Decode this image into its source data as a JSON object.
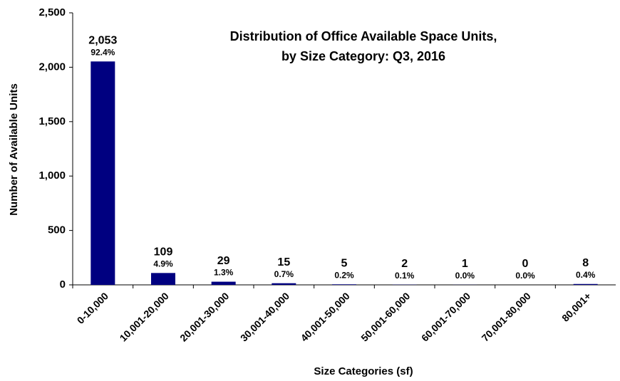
{
  "chart_data": {
    "type": "bar",
    "title": [
      "Distribution of Office Available Space Units,",
      "by Size Category: Q3, 2016"
    ],
    "x_label": "Size Categories (sf)",
    "y_label": "Number of Available Units",
    "categories": [
      "0-10,000",
      "10,001-20,000",
      "20,001-30,000",
      "30,001-40,000",
      "40,001-50,000",
      "50,001-60,000",
      "60,001-70,000",
      "70,001-80,000",
      "80,001+"
    ],
    "values": [
      2053,
      109,
      29,
      15,
      5,
      2,
      1,
      0,
      8
    ],
    "value_labels": [
      "2,053",
      "109",
      "29",
      "15",
      "5",
      "2",
      "1",
      "0",
      "8"
    ],
    "percentages": [
      {
        "value": 92.4,
        "label": "92.4%"
      },
      {
        "value": 4.9,
        "label": "4.9%"
      },
      {
        "value": 1.3,
        "label": "1.3%"
      },
      {
        "value": 0.7,
        "label": "0.7%"
      },
      {
        "value": 0.2,
        "label": "0.2%"
      },
      {
        "value": 0.1,
        "label": "0.1%"
      },
      {
        "value": 0.0,
        "label": "0.0%"
      },
      {
        "value": 0.0,
        "label": "0.0%"
      },
      {
        "value": 0.4,
        "label": "0.4%"
      }
    ],
    "color": "#000080",
    "ylim": [
      0,
      2500
    ],
    "yticks": [
      0,
      500,
      {
        "value": 1000,
        "label": "1,000"
      },
      {
        "value": 1500,
        "label": "1,500"
      },
      {
        "value": 2000,
        "label": "2,000"
      },
      {
        "value": 2500,
        "label": "2,500"
      }
    ],
    "grid": false
  }
}
